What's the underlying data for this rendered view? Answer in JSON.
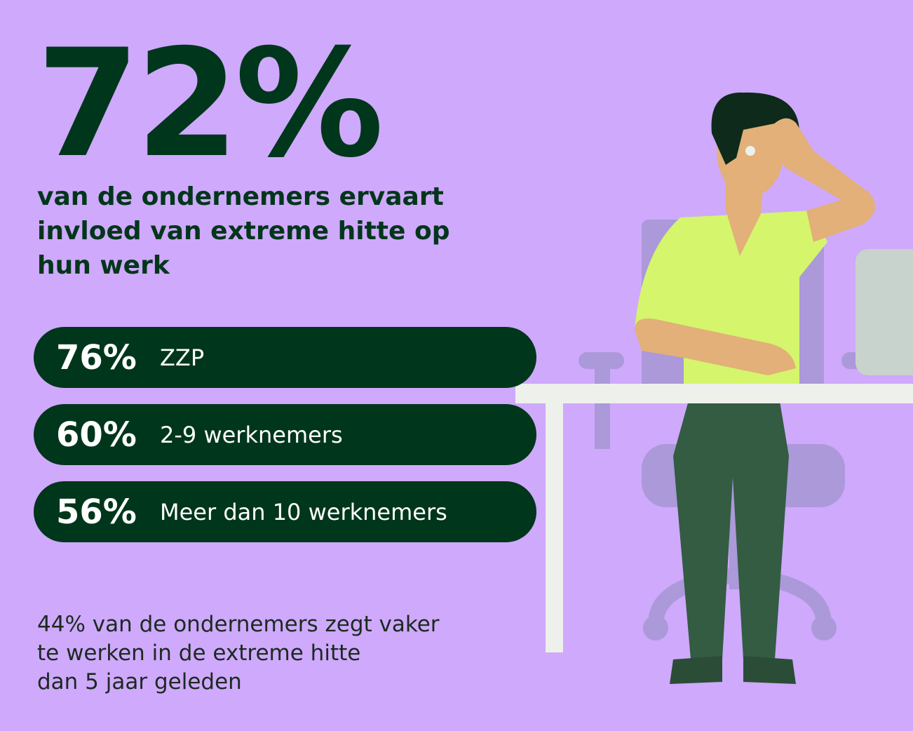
{
  "headline": {
    "value": "72%",
    "text": [
      "van de ondernemers ervaart",
      "invloed van extreme hitte op",
      "hun werk"
    ]
  },
  "rows": [
    {
      "value": "76%",
      "label": "ZZP"
    },
    {
      "value": "60%",
      "label": "2-9 werknemers"
    },
    {
      "value": "56%",
      "label": "Meer dan 10 werknemers"
    }
  ],
  "footnote": [
    "44% van de ondernemers zegt vaker",
    "te werken in de extreme hitte",
    "dan 5 jaar geleden"
  ]
}
